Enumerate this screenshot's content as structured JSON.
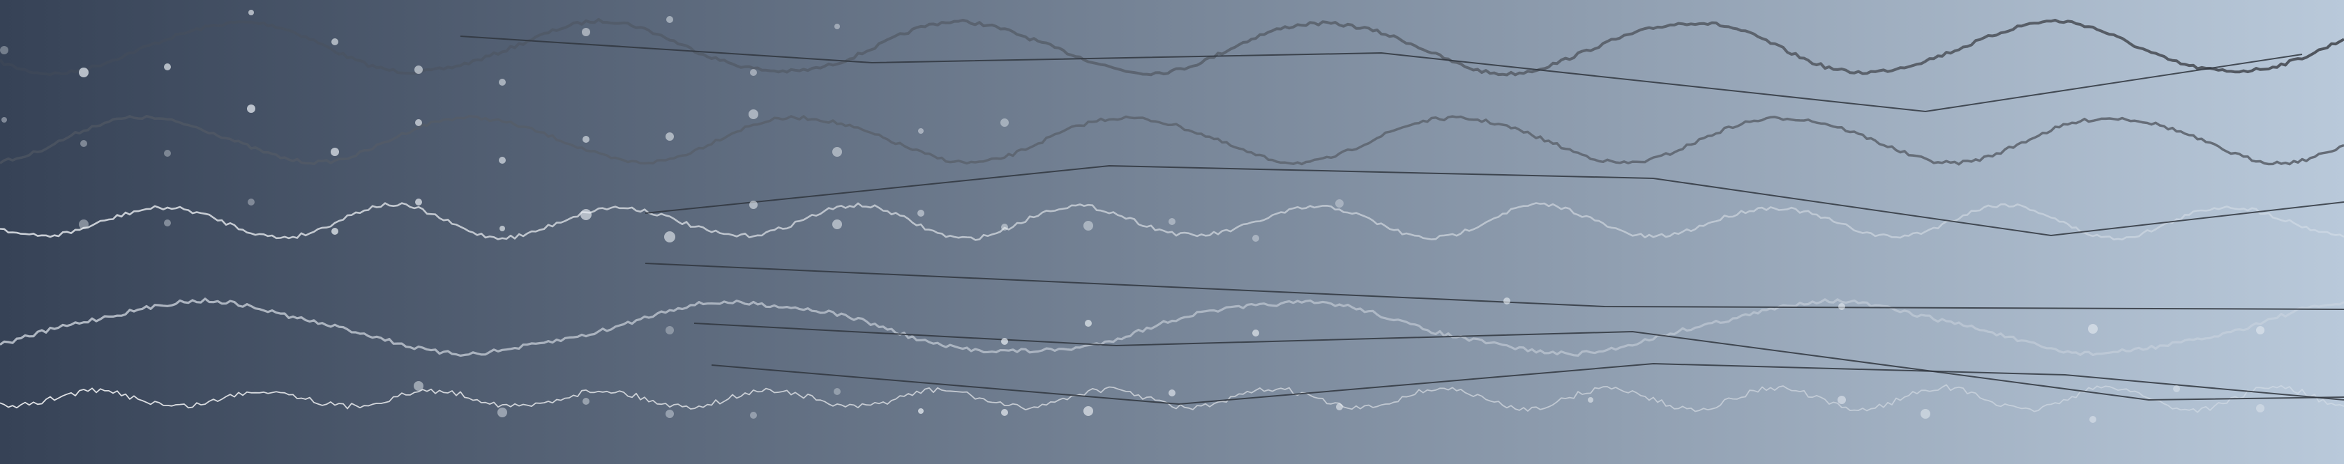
{
  "background": {
    "gradient_start": "#364256",
    "gradient_end": "#b9c9da"
  },
  "waves": [
    {
      "name": "wave-row-1",
      "color": "#4a4f57"
    },
    {
      "name": "wave-row-2",
      "color": "#565c65"
    },
    {
      "name": "wave-row-3",
      "color": "#f0f3f6"
    },
    {
      "name": "wave-row-4",
      "color": "#d7dde5"
    },
    {
      "name": "wave-row-5",
      "color": "#ffffff"
    }
  ],
  "dots_color": "#e8edf2",
  "lines_color": "#2f353d"
}
